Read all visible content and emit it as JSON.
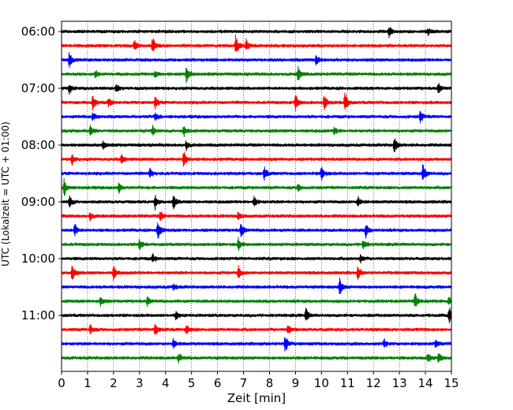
{
  "chart_data": {
    "type": "line",
    "xlabel": "Zeit  [min]",
    "ylabel": "UTC (Lokalzeit = UTC + 01:00)",
    "xlim": [
      0,
      15
    ],
    "x_ticks": [
      0,
      1,
      2,
      3,
      4,
      5,
      6,
      7,
      8,
      9,
      10,
      11,
      12,
      13,
      14,
      15
    ],
    "x_tick_labels": [
      "0",
      "1",
      "2",
      "3",
      "4",
      "5",
      "6",
      "7",
      "8",
      "9",
      "10",
      "11",
      "12",
      "13",
      "14",
      "15"
    ],
    "y_tick_labels": [
      "06:00",
      "07:00",
      "08:00",
      "09:00",
      "10:00",
      "11:00"
    ],
    "y_tick_trace_index": [
      0,
      4,
      8,
      12,
      16,
      20
    ],
    "trace_interval_minutes": 15,
    "grid": "vertical dotted",
    "colors": [
      "#000000",
      "#ff0000",
      "#0000ff",
      "#008000"
    ],
    "series": [
      {
        "start": "06:00",
        "color": "#000000",
        "events": [
          {
            "t": 12.6,
            "a": 0.6
          },
          {
            "t": 14.1,
            "a": 0.4
          }
        ]
      },
      {
        "start": "06:15",
        "color": "#ff0000",
        "events": [
          {
            "t": 2.8,
            "a": 0.6
          },
          {
            "t": 3.5,
            "a": 1.0
          },
          {
            "t": 6.7,
            "a": 1.3
          },
          {
            "t": 7.1,
            "a": 0.7
          }
        ]
      },
      {
        "start": "06:30",
        "color": "#0000ff",
        "events": [
          {
            "t": 0.3,
            "a": 1.0
          },
          {
            "t": 9.8,
            "a": 0.6
          }
        ]
      },
      {
        "start": "06:45",
        "color": "#008000",
        "events": [
          {
            "t": 1.3,
            "a": 0.5
          },
          {
            "t": 3.6,
            "a": 0.5
          },
          {
            "t": 4.8,
            "a": 1.0
          },
          {
            "t": 9.1,
            "a": 0.9
          }
        ]
      },
      {
        "start": "07:00",
        "color": "#000000",
        "events": [
          {
            "t": 0.3,
            "a": 0.6
          },
          {
            "t": 2.1,
            "a": 0.5
          },
          {
            "t": 14.5,
            "a": 0.6
          }
        ]
      },
      {
        "start": "07:15",
        "color": "#ff0000",
        "events": [
          {
            "t": 1.2,
            "a": 1.0
          },
          {
            "t": 1.8,
            "a": 0.6
          },
          {
            "t": 3.6,
            "a": 0.7
          },
          {
            "t": 9.0,
            "a": 1.0
          },
          {
            "t": 10.1,
            "a": 0.9
          },
          {
            "t": 10.9,
            "a": 1.4
          }
        ]
      },
      {
        "start": "07:30",
        "color": "#0000ff",
        "events": [
          {
            "t": 1.2,
            "a": 0.5
          },
          {
            "t": 3.6,
            "a": 0.6
          },
          {
            "t": 13.8,
            "a": 0.8
          }
        ]
      },
      {
        "start": "07:45",
        "color": "#008000",
        "events": [
          {
            "t": 1.1,
            "a": 0.6
          },
          {
            "t": 3.5,
            "a": 0.6
          },
          {
            "t": 4.7,
            "a": 0.7
          },
          {
            "t": 10.5,
            "a": 0.5
          }
        ]
      },
      {
        "start": "08:00",
        "color": "#000000",
        "events": [
          {
            "t": 1.6,
            "a": 0.5
          },
          {
            "t": 4.8,
            "a": 0.5
          },
          {
            "t": 12.8,
            "a": 1.0
          }
        ]
      },
      {
        "start": "08:15",
        "color": "#ff0000",
        "events": [
          {
            "t": 0.4,
            "a": 0.6
          },
          {
            "t": 2.3,
            "a": 0.5
          },
          {
            "t": 4.7,
            "a": 1.2
          }
        ]
      },
      {
        "start": "08:30",
        "color": "#0000ff",
        "events": [
          {
            "t": 3.4,
            "a": 0.6
          },
          {
            "t": 7.8,
            "a": 0.8
          },
          {
            "t": 10.0,
            "a": 1.0
          },
          {
            "t": 13.9,
            "a": 1.2
          }
        ]
      },
      {
        "start": "08:45",
        "color": "#008000",
        "events": [
          {
            "t": 0.1,
            "a": 1.0
          },
          {
            "t": 2.2,
            "a": 0.6
          },
          {
            "t": 9.1,
            "a": 0.5
          }
        ]
      },
      {
        "start": "09:00",
        "color": "#000000",
        "events": [
          {
            "t": 0.3,
            "a": 0.8
          },
          {
            "t": 3.6,
            "a": 0.8
          },
          {
            "t": 4.3,
            "a": 0.8
          },
          {
            "t": 7.4,
            "a": 0.7
          },
          {
            "t": 11.4,
            "a": 0.6
          }
        ]
      },
      {
        "start": "09:15",
        "color": "#ff0000",
        "events": [
          {
            "t": 1.1,
            "a": 0.5
          },
          {
            "t": 3.8,
            "a": 0.6
          },
          {
            "t": 6.8,
            "a": 0.6
          }
        ]
      },
      {
        "start": "09:30",
        "color": "#0000ff",
        "events": [
          {
            "t": 0.5,
            "a": 0.8
          },
          {
            "t": 3.7,
            "a": 1.3
          },
          {
            "t": 6.9,
            "a": 0.9
          },
          {
            "t": 11.7,
            "a": 0.9
          }
        ]
      },
      {
        "start": "09:45",
        "color": "#008000",
        "events": [
          {
            "t": 3.0,
            "a": 0.6
          },
          {
            "t": 6.8,
            "a": 0.7
          },
          {
            "t": 11.6,
            "a": 0.6
          }
        ]
      },
      {
        "start": "10:00",
        "color": "#000000",
        "events": [
          {
            "t": 3.5,
            "a": 0.5
          },
          {
            "t": 11.5,
            "a": 0.5
          }
        ]
      },
      {
        "start": "10:15",
        "color": "#ff0000",
        "events": [
          {
            "t": 0.4,
            "a": 1.0
          },
          {
            "t": 2.0,
            "a": 0.9
          },
          {
            "t": 6.8,
            "a": 0.8
          },
          {
            "t": 11.4,
            "a": 0.8
          }
        ]
      },
      {
        "start": "10:30",
        "color": "#0000ff",
        "events": [
          {
            "t": 4.3,
            "a": 0.4
          },
          {
            "t": 10.7,
            "a": 1.0
          }
        ]
      },
      {
        "start": "10:45",
        "color": "#008000",
        "events": [
          {
            "t": 1.5,
            "a": 0.7
          },
          {
            "t": 3.3,
            "a": 0.5
          },
          {
            "t": 13.6,
            "a": 1.0
          },
          {
            "t": 14.9,
            "a": 0.5
          }
        ]
      },
      {
        "start": "11:00",
        "color": "#000000",
        "events": [
          {
            "t": 4.4,
            "a": 0.5
          },
          {
            "t": 9.4,
            "a": 0.8
          },
          {
            "t": 14.9,
            "a": 1.0
          }
        ]
      },
      {
        "start": "11:15",
        "color": "#ff0000",
        "events": [
          {
            "t": 1.1,
            "a": 0.6
          },
          {
            "t": 3.6,
            "a": 0.9
          },
          {
            "t": 4.8,
            "a": 0.6
          },
          {
            "t": 8.7,
            "a": 0.6
          }
        ]
      },
      {
        "start": "11:30",
        "color": "#0000ff",
        "events": [
          {
            "t": 4.3,
            "a": 0.5
          },
          {
            "t": 8.6,
            "a": 1.2
          },
          {
            "t": 12.4,
            "a": 0.6
          },
          {
            "t": 14.4,
            "a": 0.6
          }
        ]
      },
      {
        "start": "11:45",
        "color": "#008000",
        "events": [
          {
            "t": 4.5,
            "a": 0.6
          },
          {
            "t": 14.1,
            "a": 0.6
          },
          {
            "t": 14.5,
            "a": 0.6
          }
        ]
      }
    ]
  }
}
